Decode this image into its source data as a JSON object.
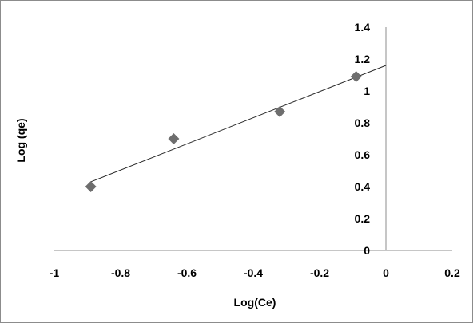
{
  "chart_data": {
    "type": "scatter",
    "title": "",
    "xlabel": "Log(Ce)",
    "ylabel": "Log (qe)",
    "xlim": [
      -1,
      0.2
    ],
    "ylim": [
      0,
      1.4
    ],
    "x_ticks": [
      "-1",
      "-0.8",
      "-0.6",
      "-0.4",
      "-0.2",
      "0",
      "0.2"
    ],
    "y_ticks": [
      "0",
      "0.2",
      "0.4",
      "0.6",
      "0.8",
      "1",
      "1.2",
      "1.4"
    ],
    "grid": false,
    "legend": "none",
    "series": [
      {
        "points": [
          {
            "x": -0.89,
            "y": 0.4
          },
          {
            "x": -0.64,
            "y": 0.7
          },
          {
            "x": -0.32,
            "y": 0.87
          },
          {
            "x": -0.09,
            "y": 1.09
          }
        ]
      }
    ],
    "trendline": {
      "x_range": [
        -0.89,
        0
      ],
      "slope": 0.82,
      "intercept": 1.16
    },
    "colors": {
      "marker": "#6e6e6e",
      "trendline": "#2b2b2b",
      "axis": "#8c8c8c"
    }
  }
}
